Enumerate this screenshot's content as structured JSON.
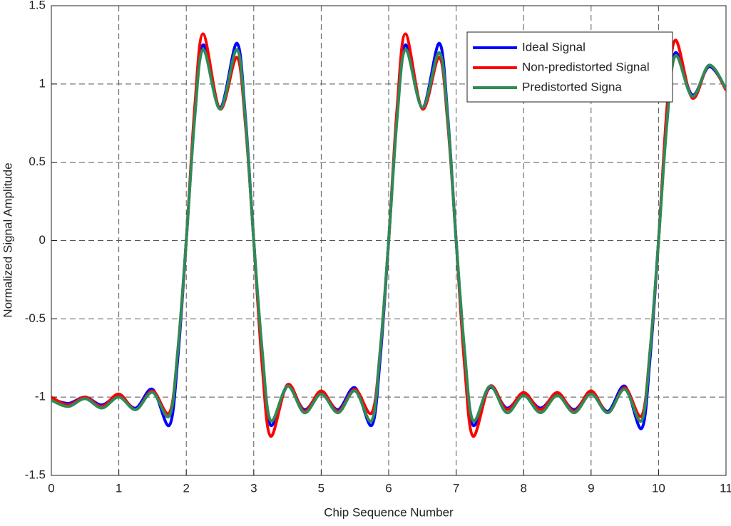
{
  "chart_data": {
    "type": "line",
    "xlabel": "Chip Sequence Number",
    "ylabel": "Normalized Signal Amplitude",
    "x": [
      0,
      0.25,
      0.5,
      0.75,
      1,
      1.25,
      1.5,
      1.75,
      1.875,
      2,
      2.125,
      2.25,
      2.5,
      2.75,
      2.875,
      3,
      3.125,
      3.25,
      3.5,
      3.75,
      4,
      4.25,
      4.5,
      4.75,
      4.875,
      5,
      5.125,
      5.25,
      5.5,
      5.75,
      5.875,
      6,
      6.125,
      6.25,
      6.5,
      6.75,
      7,
      7.25,
      7.5,
      7.75,
      8,
      8.25,
      8.5,
      8.75,
      8.875,
      9,
      9.125,
      9.25,
      9.5,
      9.75,
      10
    ],
    "series": [
      {
        "name": "Ideal Signal",
        "color": "#0000ff",
        "values": [
          -1.01,
          -1.04,
          -1.0,
          -1.05,
          -0.99,
          -1.07,
          -0.95,
          -1.18,
          -0.75,
          0,
          0.8,
          1.25,
          0.85,
          1.26,
          0.8,
          0,
          -0.75,
          -1.18,
          -0.93,
          -1.08,
          -0.97,
          -1.08,
          -0.94,
          -1.18,
          -0.75,
          0,
          0.8,
          1.25,
          0.85,
          1.26,
          0.8,
          0,
          -0.75,
          -1.18,
          -0.94,
          -1.07,
          -0.98,
          -1.07,
          -0.98,
          -1.08,
          -0.97,
          -1.09,
          -0.93,
          -1.2,
          -0.75,
          0,
          0.8,
          1.2,
          0.93,
          1.11,
          0.97
        ]
      },
      {
        "name": "Non-predistorted Signal",
        "color": "#ff0000",
        "values": [
          -1.0,
          -1.05,
          -1.0,
          -1.06,
          -0.98,
          -1.08,
          -0.96,
          -1.1,
          -0.7,
          0,
          0.85,
          1.32,
          0.84,
          1.17,
          0.75,
          0,
          -0.8,
          -1.25,
          -0.92,
          -1.09,
          -0.96,
          -1.09,
          -0.95,
          -1.1,
          -0.7,
          0,
          0.85,
          1.32,
          0.84,
          1.17,
          0.75,
          0,
          -0.8,
          -1.25,
          -0.93,
          -1.08,
          -0.97,
          -1.08,
          -0.97,
          -1.09,
          -0.96,
          -1.1,
          -0.94,
          -1.12,
          -0.7,
          0,
          0.85,
          1.28,
          0.91,
          1.12,
          0.96
        ]
      },
      {
        "name": "Predistorted Signa",
        "color": "#2e8b57",
        "values": [
          -1.02,
          -1.06,
          -1.01,
          -1.07,
          -1.0,
          -1.08,
          -0.97,
          -1.12,
          -0.7,
          0,
          0.78,
          1.22,
          0.84,
          1.22,
          0.78,
          0,
          -0.7,
          -1.15,
          -0.93,
          -1.1,
          -0.98,
          -1.1,
          -0.96,
          -1.15,
          -0.7,
          0,
          0.78,
          1.22,
          0.85,
          1.2,
          0.78,
          0,
          -0.7,
          -1.15,
          -0.93,
          -1.1,
          -0.99,
          -1.1,
          -0.99,
          -1.1,
          -0.98,
          -1.1,
          -0.95,
          -1.15,
          -0.7,
          0,
          0.75,
          1.18,
          0.92,
          1.12,
          0.97
        ]
      }
    ],
    "xlim": [
      0,
      10
    ],
    "xticks": [
      0,
      1,
      2,
      3,
      {
        "value": 4,
        "label": "5"
      },
      {
        "value": 5,
        "label": "6"
      },
      {
        "value": 6,
        "label": "7"
      },
      {
        "value": 7,
        "label": "8"
      },
      {
        "value": 8,
        "label": "9"
      },
      {
        "value": 9,
        "label": "10"
      },
      {
        "value": 10,
        "label": "11"
      }
    ],
    "ylim": [
      -1.5,
      1.5
    ],
    "yticks": [
      -1.5,
      -1,
      -0.5,
      0,
      0.5,
      1,
      1.5
    ],
    "grid": true,
    "legend": "upper-right"
  }
}
